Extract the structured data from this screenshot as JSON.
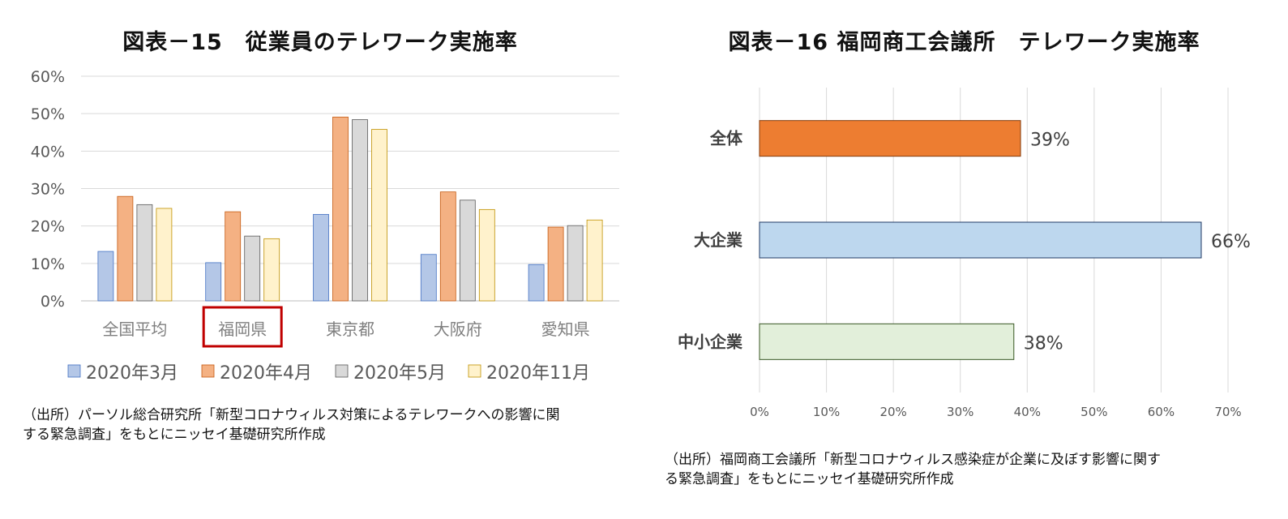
{
  "chart_data": [
    {
      "type": "bar",
      "title": "図表－15　従業員のテレワーク実施率",
      "categories": [
        "全国平均",
        "福岡県",
        "東京都",
        "大阪府",
        "愛知県"
      ],
      "highlighted_category": "福岡県",
      "highlight_color": "#c00000",
      "series": [
        {
          "name": "2020年3月",
          "values": [
            13.2,
            10.2,
            23.1,
            12.4,
            9.7
          ],
          "color": "#b4c7e7",
          "stroke": "#4472c4"
        },
        {
          "name": "2020年4月",
          "values": [
            27.9,
            23.8,
            49.1,
            29.1,
            19.7
          ],
          "color": "#f4b183",
          "stroke": "#c55a11"
        },
        {
          "name": "2020年5月",
          "values": [
            25.7,
            17.3,
            48.4,
            26.9,
            20.1
          ],
          "color": "#d9d9d9",
          "stroke": "#595959"
        },
        {
          "name": "2020年11月",
          "values": [
            24.7,
            16.6,
            45.8,
            24.4,
            21.6
          ],
          "color": "#fff2cc",
          "stroke": "#bf9000"
        }
      ],
      "ylim": [
        0,
        60
      ],
      "yticks": [
        "0%",
        "10%",
        "20%",
        "30%",
        "40%",
        "50%",
        "60%"
      ],
      "grid": true,
      "legend": "bottom",
      "xlabel": "",
      "ylabel": ""
    },
    {
      "type": "bar",
      "orientation": "horizontal",
      "title": "図表－16 福岡商工会議所　テレワーク実施率",
      "categories": [
        "全体",
        "大企業",
        "中小企業"
      ],
      "values": [
        39,
        66,
        38
      ],
      "value_labels": [
        "39%",
        "66%",
        "38%"
      ],
      "colors": [
        "#ed7d31",
        "#bdd7ee",
        "#e2efda"
      ],
      "strokes": [
        "#843c0c",
        "#1f3864",
        "#385723"
      ],
      "xlim": [
        0,
        70
      ],
      "xticks": [
        "0%",
        "10%",
        "20%",
        "30%",
        "40%",
        "50%",
        "60%",
        "70%"
      ],
      "grid": true,
      "xlabel": "",
      "ylabel": ""
    }
  ],
  "sources": {
    "left": "（出所）パーソル総合研究所「新型コロナウィルス対策によるテレワークへの影響に関\nする緊急調査」をもとにニッセイ基礎研究所作成",
    "right": "（出所）福岡商工会議所「新型コロナウィルス感染症が企業に及ぼす影響に関す\nる緊急調査」をもとにニッセイ基礎研究所作成"
  }
}
